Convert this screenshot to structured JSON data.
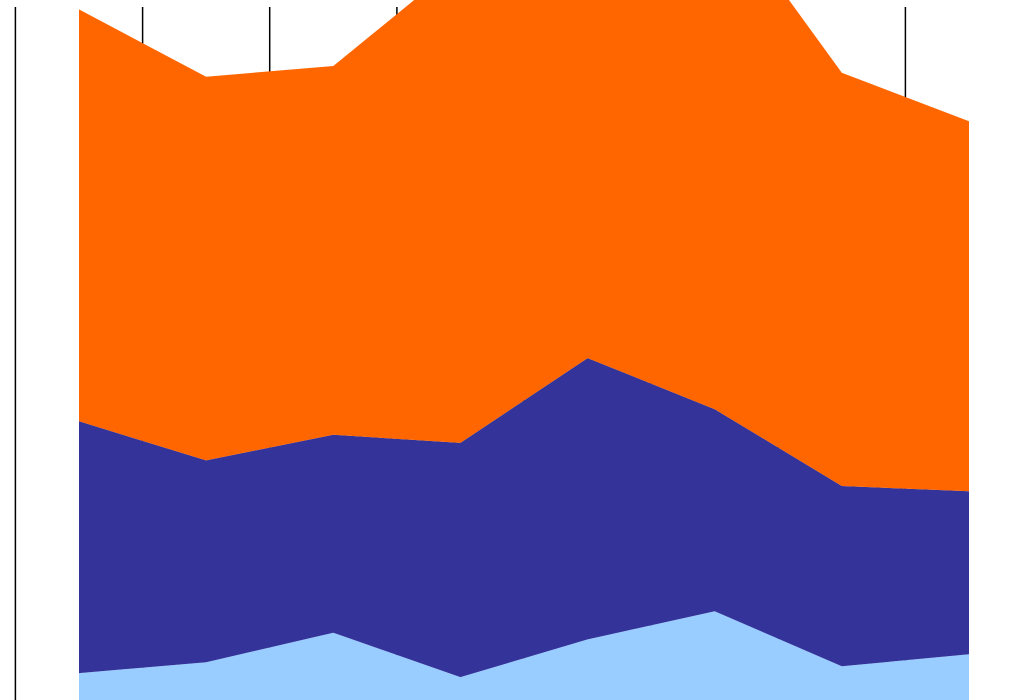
{
  "chart_data": {
    "type": "area",
    "stacked": true,
    "x": [
      1,
      2,
      3,
      4,
      5,
      6,
      7,
      8
    ],
    "xlim": [
      0.5,
      8.5
    ],
    "ylim": [
      0,
      520
    ],
    "grid": "vertical",
    "legend": "none",
    "series": [
      {
        "color": "#99ccff",
        "values": [
          20,
          28,
          50,
          17,
          45,
          66,
          25,
          34
        ]
      },
      {
        "color": "#333399",
        "values": [
          187,
          150,
          147,
          174,
          209,
          150,
          134,
          121
        ]
      },
      {
        "color": "#ff6600",
        "values": [
          306,
          285,
          274,
          357,
          293,
          380,
          307,
          275
        ]
      }
    ]
  }
}
